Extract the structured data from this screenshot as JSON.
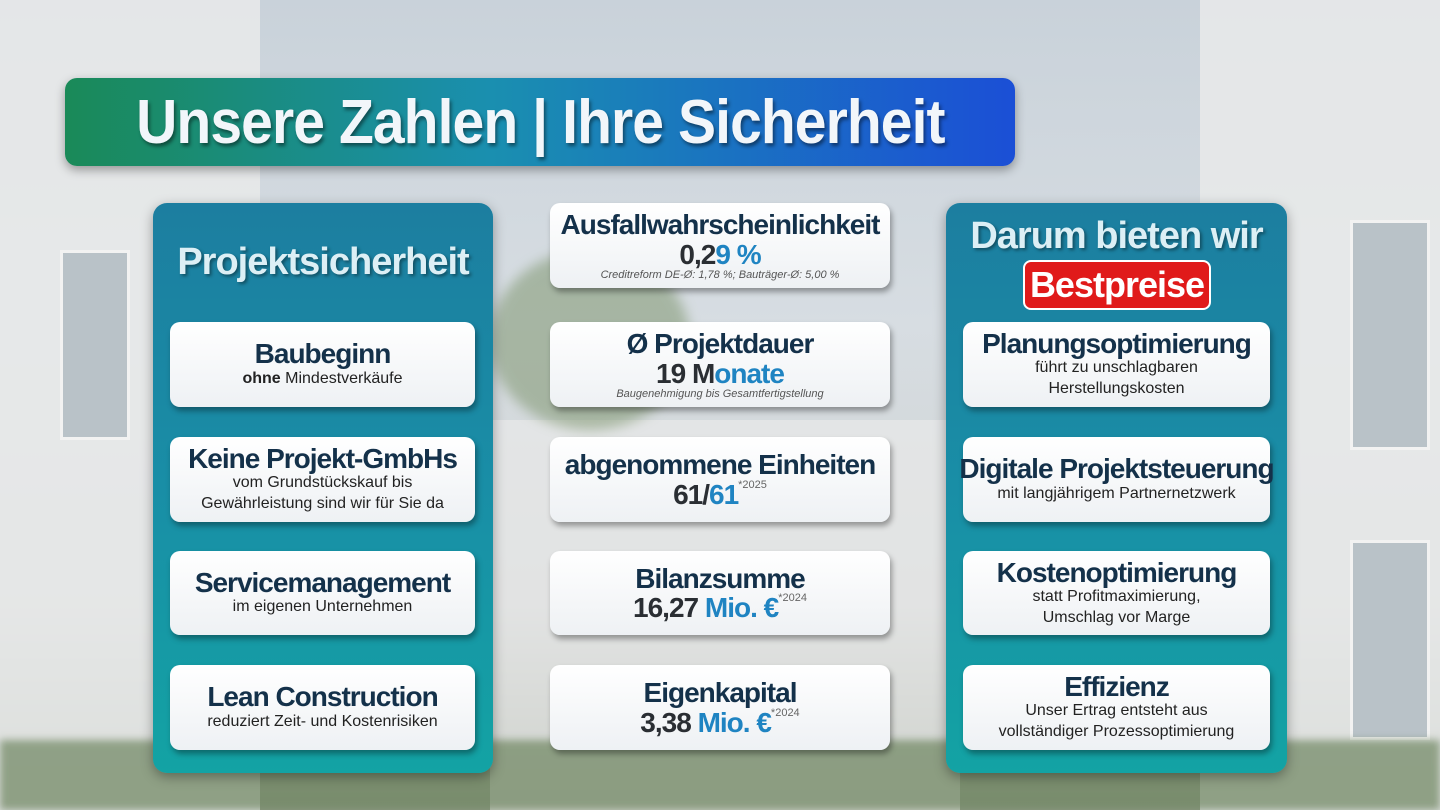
{
  "title": "Unsere Zahlen | Ihre Sicherheit",
  "left": {
    "heading": "Projektsicherheit",
    "items": [
      {
        "title": "Baubeginn",
        "bold": "ohne",
        "text": " Mindestverkäufe"
      },
      {
        "title": "Keine Projekt-GmbHs",
        "bold": "",
        "text": "vom Grundstückskauf bis Gewährleistung sind wir für Sie da"
      },
      {
        "title": "Servicemanagement",
        "bold": "",
        "text": "im eigenen Unternehmen"
      },
      {
        "title": "Lean Construction",
        "bold": "",
        "text": "reduziert Zeit- und Kostenrisiken"
      }
    ]
  },
  "middle": [
    {
      "title": "Ausfallwahrscheinlichkeit",
      "value_dark": "0,2",
      "value_blue": "9 %",
      "sup": "",
      "note": "Creditreform DE-Ø: 1,78 %; Bauträger-Ø: 5,00 %"
    },
    {
      "title": "Ø Projektdauer",
      "value_dark": "19 M",
      "value_blue": "onate",
      "sup": "",
      "note": "Baugenehmigung bis Gesamtfertigstellung"
    },
    {
      "title": "abgenommene Einheiten",
      "value_dark": "61/",
      "value_blue": "61",
      "sup": "*2025",
      "note": ""
    },
    {
      "title": "Bilanzsumme",
      "value_dark": "16,27 ",
      "value_blue": "Mio. €",
      "sup": "*2024",
      "note": ""
    },
    {
      "title": "Eigenkapital",
      "value_dark": "3,38 ",
      "value_blue": "Mio. €",
      "sup": "*2024",
      "note": ""
    }
  ],
  "right": {
    "heading": "Darum bieten wir",
    "badge": "Bestpreise",
    "items": [
      {
        "title": "Planungsoptimierung",
        "text": "führt zu unschlagbaren Herstellungskosten"
      },
      {
        "title": "Digitale Projektsteuerung",
        "text": "mit langjährigem Partnernetzwerk"
      },
      {
        "title": "Kostenoptimierung",
        "text": "statt Profitmaximierung, Umschlag vor Marge"
      },
      {
        "title": "Effizienz",
        "text": "Unser Ertrag entsteht aus vollständiger Prozessoptimierung"
      }
    ]
  },
  "colors": {
    "title_start": "#1a8a58",
    "title_end": "#1b4fd6",
    "panel": "#198ea6",
    "badge": "#e01a1a",
    "heading": "#14314a",
    "accent": "#1f84c2"
  }
}
